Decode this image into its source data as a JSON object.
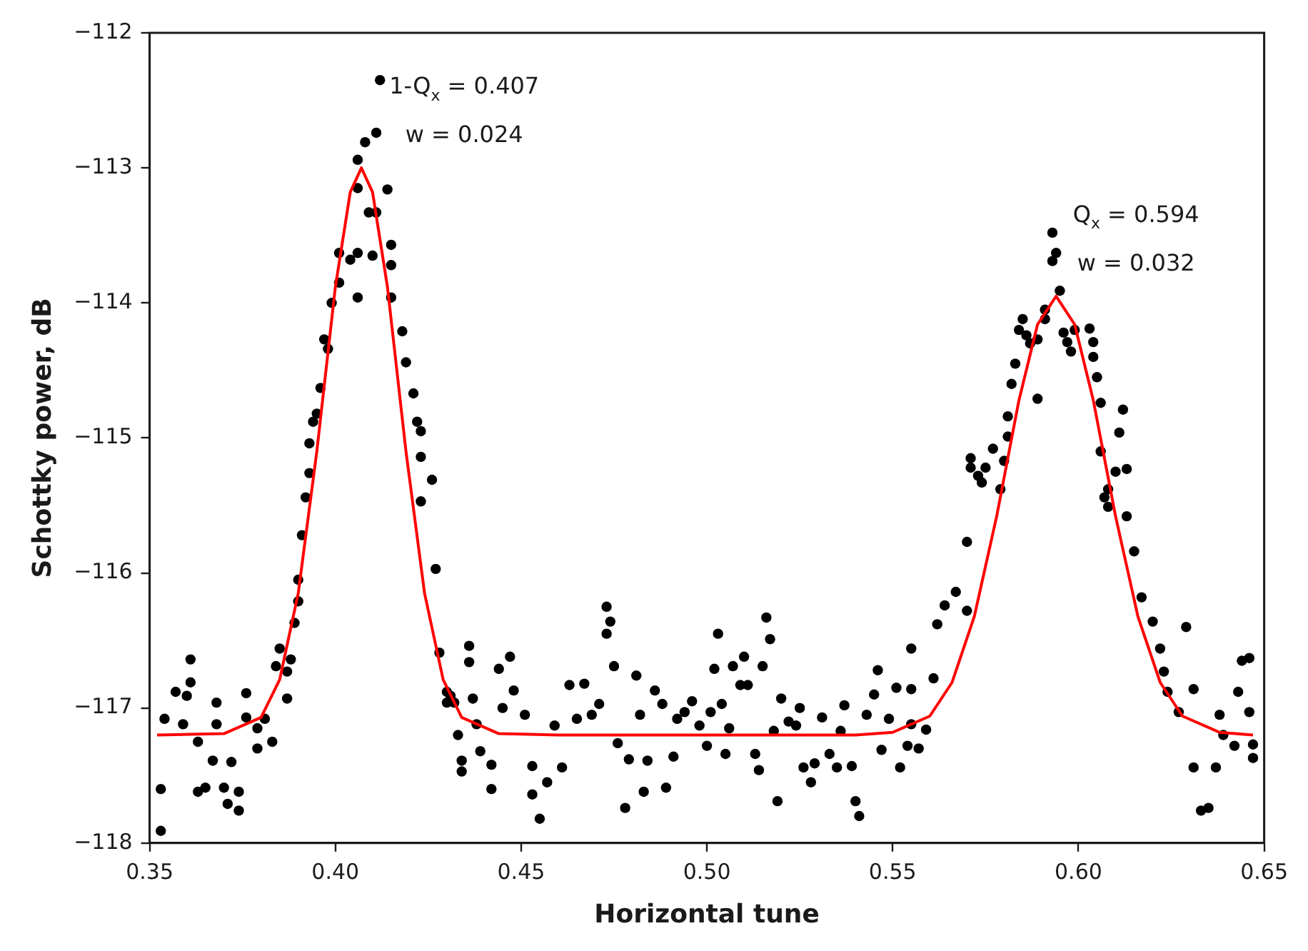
{
  "chart_data": {
    "type": "scatter",
    "xlabel": "Horizontal tune",
    "ylabel": "Schottky power, dB",
    "xlim": [
      0.35,
      0.65
    ],
    "ylim": [
      -118,
      -112
    ],
    "xticks": [
      0.35,
      {
        "value": 0.4,
        "label": "0.40"
      },
      0.45,
      {
        "value": 0.5,
        "label": "0.50"
      },
      0.55,
      {
        "value": 0.6,
        "label": "0.60"
      },
      0.65
    ],
    "yticks": [
      {
        "value": -118,
        "label": "−118"
      },
      {
        "value": -117,
        "label": "−117"
      },
      {
        "value": -116,
        "label": "−116"
      },
      {
        "value": -115,
        "label": "−115"
      },
      {
        "value": -114,
        "label": "−114"
      },
      {
        "value": -113,
        "label": "−113"
      },
      {
        "value": -112,
        "label": "−112"
      }
    ],
    "grid": false,
    "legend": false,
    "annotations": [
      {
        "text": "1-Q$_{x}$ = 0.407\nw = 0.024",
        "x": 0.407,
        "y": -113.0
      },
      {
        "text": "Q$_{x}$ = 0.594\nw = 0.032",
        "x": 0.594,
        "y": -113.95
      }
    ],
    "series": [
      {
        "type": "scatter",
        "color": "#000000",
        "marker": "circle",
        "x": [
          0.353,
          0.353,
          0.354,
          0.357,
          0.359,
          0.36,
          0.361,
          0.361,
          0.363,
          0.363,
          0.365,
          0.367,
          0.368,
          0.368,
          0.37,
          0.371,
          0.372,
          0.374,
          0.374,
          0.376,
          0.376,
          0.379,
          0.379,
          0.381,
          0.383,
          0.384,
          0.385,
          0.387,
          0.387,
          0.388,
          0.389,
          0.39,
          0.39,
          0.391,
          0.392,
          0.393,
          0.393,
          0.394,
          0.395,
          0.396,
          0.397,
          0.398,
          0.399,
          0.401,
          0.401,
          0.404,
          0.406,
          0.406,
          0.406,
          0.406,
          0.408,
          0.409,
          0.41,
          0.411,
          0.411,
          0.412,
          0.414,
          0.415,
          0.415,
          0.415,
          0.418,
          0.419,
          0.421,
          0.422,
          0.423,
          0.423,
          0.423,
          0.426,
          0.427,
          0.428,
          0.43,
          0.431,
          0.432,
          0.43,
          0.433,
          0.434,
          0.434,
          0.436,
          0.436,
          0.437,
          0.438,
          0.439,
          0.442,
          0.442,
          0.444,
          0.445,
          0.447,
          0.448,
          0.451,
          0.453,
          0.453,
          0.455,
          0.457,
          0.459,
          0.461,
          0.463,
          0.465,
          0.467,
          0.469,
          0.471,
          0.473,
          0.474,
          0.473,
          0.475,
          0.476,
          0.478,
          0.479,
          0.481,
          0.482,
          0.483,
          0.484,
          0.486,
          0.488,
          0.489,
          0.491,
          0.492,
          0.494,
          0.496,
          0.498,
          0.5,
          0.501,
          0.502,
          0.503,
          0.504,
          0.505,
          0.506,
          0.507,
          0.509,
          0.51,
          0.511,
          0.513,
          0.514,
          0.515,
          0.516,
          0.517,
          0.518,
          0.519,
          0.52,
          0.522,
          0.524,
          0.525,
          0.526,
          0.528,
          0.529,
          0.531,
          0.533,
          0.535,
          0.536,
          0.537,
          0.539,
          0.54,
          0.541,
          0.543,
          0.545,
          0.546,
          0.547,
          0.549,
          0.551,
          0.552,
          0.554,
          0.555,
          0.555,
          0.555,
          0.557,
          0.559,
          0.561,
          0.562,
          0.564,
          0.567,
          0.57,
          0.57,
          0.615,
          0.617,
          0.62,
          0.622,
          0.623,
          0.624,
          0.627,
          0.629,
          0.631,
          0.631,
          0.633,
          0.635,
          0.637,
          0.638,
          0.639,
          0.642,
          0.643,
          0.644,
          0.646,
          0.646,
          0.647,
          0.647,
          0.593,
          0.594,
          0.593,
          0.595,
          0.591,
          0.591,
          0.585,
          0.584,
          0.586,
          0.589,
          0.587,
          0.596,
          0.597,
          0.599,
          0.598,
          0.603,
          0.604,
          0.604,
          0.583,
          0.582,
          0.605,
          0.589,
          0.606,
          0.612,
          0.581,
          0.611,
          0.581,
          0.577,
          0.571,
          0.58,
          0.606,
          0.571,
          0.575,
          0.573,
          0.574,
          0.579,
          0.61,
          0.613,
          0.608,
          0.607,
          0.608,
          0.613
        ],
        "values": [
          -117.91,
          -117.6,
          -117.08,
          -116.88,
          -117.12,
          -116.91,
          -116.81,
          -116.64,
          -117.25,
          -117.62,
          -117.59,
          -117.39,
          -117.12,
          -116.96,
          -117.59,
          -117.71,
          -117.4,
          -117.76,
          -117.62,
          -117.07,
          -116.89,
          -117.15,
          -117.3,
          -117.08,
          -117.25,
          -116.69,
          -116.56,
          -116.73,
          -116.93,
          -116.64,
          -116.37,
          -116.21,
          -116.05,
          -115.72,
          -115.44,
          -115.26,
          -115.04,
          -114.88,
          -114.82,
          -114.63,
          -114.27,
          -114.34,
          -114.0,
          -113.85,
          -113.63,
          -113.68,
          -113.63,
          -113.15,
          -112.94,
          -113.96,
          -112.81,
          -113.33,
          -113.65,
          -113.33,
          -112.74,
          -112.35,
          -113.16,
          -113.57,
          -113.72,
          -113.96,
          -114.21,
          -114.44,
          -114.67,
          -114.88,
          -114.95,
          -115.14,
          -115.47,
          -115.31,
          -115.97,
          -116.59,
          -116.88,
          -116.91,
          -116.96,
          -116.96,
          -117.2,
          -117.39,
          -117.47,
          -116.54,
          -116.66,
          -116.93,
          -117.12,
          -117.32,
          -117.42,
          -117.6,
          -116.71,
          -117.0,
          -116.62,
          -116.87,
          -117.05,
          -117.43,
          -117.64,
          -117.82,
          -117.55,
          -117.13,
          -117.44,
          -116.83,
          -117.08,
          -116.82,
          -117.05,
          -116.97,
          -116.25,
          -116.36,
          -116.45,
          -116.69,
          -117.26,
          -117.74,
          -117.38,
          -116.76,
          -117.05,
          -117.62,
          -117.39,
          -116.87,
          -116.97,
          -117.59,
          -117.36,
          -117.08,
          -117.03,
          -116.95,
          -117.13,
          -117.28,
          -117.03,
          -116.71,
          -116.45,
          -116.97,
          -117.34,
          -117.15,
          -116.69,
          -116.83,
          -116.62,
          -116.83,
          -117.34,
          -117.46,
          -116.69,
          -116.33,
          -116.49,
          -117.17,
          -117.69,
          -116.93,
          -117.1,
          -117.13,
          -117.0,
          -117.44,
          -117.55,
          -117.41,
          -117.07,
          -117.34,
          -117.44,
          -117.17,
          -116.98,
          -117.43,
          -117.69,
          -117.8,
          -117.05,
          -116.9,
          -116.72,
          -117.31,
          -117.08,
          -116.85,
          -117.44,
          -117.28,
          -116.56,
          -116.86,
          -117.12,
          -117.3,
          -117.16,
          -116.78,
          -116.38,
          -116.24,
          -116.14,
          -116.28,
          -115.77,
          -115.84,
          -116.18,
          -116.36,
          -116.56,
          -116.73,
          -116.88,
          -117.03,
          -116.4,
          -116.86,
          -117.44,
          -117.76,
          -117.74,
          -117.44,
          -117.05,
          -117.2,
          -117.28,
          -116.88,
          -116.65,
          -116.63,
          -117.03,
          -117.27,
          -117.37,
          -113.48,
          -113.63,
          -113.69,
          -113.91,
          -114.05,
          -114.12,
          -114.12,
          -114.2,
          -114.24,
          -114.27,
          -114.3,
          -114.22,
          -114.29,
          -114.2,
          -114.36,
          -114.19,
          -114.29,
          -114.4,
          -114.45,
          -114.6,
          -114.55,
          -114.71,
          -114.74,
          -114.79,
          -114.84,
          -114.96,
          -114.99,
          -115.08,
          -115.15,
          -115.17,
          -115.1,
          -115.22,
          -115.22,
          -115.28,
          -115.33,
          -115.38,
          -115.25,
          -115.23,
          -115.38,
          -115.44,
          -115.51,
          -115.58
        ]
      },
      {
        "type": "line",
        "color": "#ff0000",
        "marker": "none",
        "line_style": "solid",
        "x": [
          0.352,
          0.37,
          0.38,
          0.385,
          0.39,
          0.395,
          0.4,
          0.404,
          0.407,
          0.41,
          0.414,
          0.419,
          0.424,
          0.429,
          0.434,
          0.444,
          0.46,
          0.54,
          0.55,
          0.56,
          0.566,
          0.572,
          0.578,
          0.584,
          0.589,
          0.594,
          0.599,
          0.604,
          0.61,
          0.616,
          0.622,
          0.628,
          0.638,
          0.647
        ],
        "values": [
          -117.2,
          -117.19,
          -117.07,
          -116.79,
          -116.15,
          -115.1,
          -113.88,
          -113.18,
          -113.0,
          -113.18,
          -113.88,
          -115.1,
          -116.15,
          -116.79,
          -117.07,
          -117.19,
          -117.2,
          -117.2,
          -117.18,
          -117.06,
          -116.81,
          -116.32,
          -115.58,
          -114.72,
          -114.16,
          -113.95,
          -114.16,
          -114.72,
          -115.58,
          -116.32,
          -116.81,
          -117.06,
          -117.18,
          -117.2
        ]
      }
    ]
  }
}
